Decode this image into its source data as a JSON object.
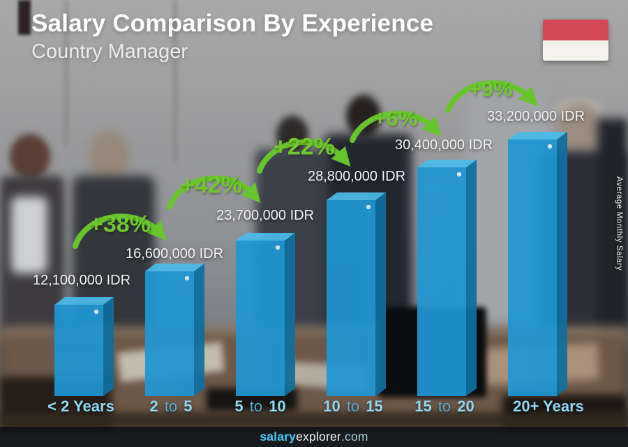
{
  "header": {
    "title": "Salary Comparison By Experience",
    "subtitle": "Country Manager"
  },
  "flag": {
    "country": "Indonesia",
    "top_color": "#d24a55",
    "bottom_color": "#f4f2ef"
  },
  "y_axis_label": "Average Monthly Salary",
  "footer": {
    "brand_bold": "salary",
    "brand_regular": "explorer",
    "brand_suffix": ".com"
  },
  "colors": {
    "bar_front": "#1f97d4",
    "bar_top": "#4abbe9",
    "bar_side": "#0e6f9f",
    "accent_green": "#67c52c",
    "axis_label_blue": "#8fd9f6",
    "axis_label_muted": "#57aad0",
    "value_text": "#f4f4f4"
  },
  "chart_data": {
    "type": "bar",
    "title": "Salary Comparison By Experience",
    "subtitle": "Country Manager",
    "unit": "IDR",
    "ylabel": "Average Monthly Salary",
    "legend": "none",
    "grid": false,
    "value_axis_visible": false,
    "ylim": [
      0,
      33200000
    ],
    "categories": [
      "< 2 Years",
      "2 to 5",
      "5 to 10",
      "10 to 15",
      "15 to 20",
      "20+ Years"
    ],
    "values": [
      12100000,
      16600000,
      23700000,
      28800000,
      30400000,
      33200000
    ],
    "bars": [
      {
        "category": "< 2 Years",
        "value": 12100000,
        "value_label": "12,100,000 IDR"
      },
      {
        "category": "2 to 5",
        "value": 16600000,
        "value_label": "16,600,000 IDR"
      },
      {
        "category": "5 to 10",
        "value": 23700000,
        "value_label": "23,700,000 IDR"
      },
      {
        "category": "10 to 15",
        "value": 28800000,
        "value_label": "28,800,000 IDR"
      },
      {
        "category": "15 to 20",
        "value": 30400000,
        "value_label": "30,400,000 IDR"
      },
      {
        "category": "20+ Years",
        "value": 33200000,
        "value_label": "33,200,000 IDR"
      }
    ],
    "increases": [
      {
        "from": "< 2 Years",
        "to": "2 to 5",
        "percent": 38,
        "label": "+38%"
      },
      {
        "from": "2 to 5",
        "to": "5 to 10",
        "percent": 42,
        "label": "+42%"
      },
      {
        "from": "5 to 10",
        "to": "10 to 15",
        "percent": 22,
        "label": "+22%"
      },
      {
        "from": "10 to 15",
        "to": "15 to 20",
        "percent": 6,
        "label": "+6%"
      },
      {
        "from": "15 to 20",
        "to": "20+ Years",
        "percent": 9,
        "label": "+9%"
      }
    ]
  }
}
